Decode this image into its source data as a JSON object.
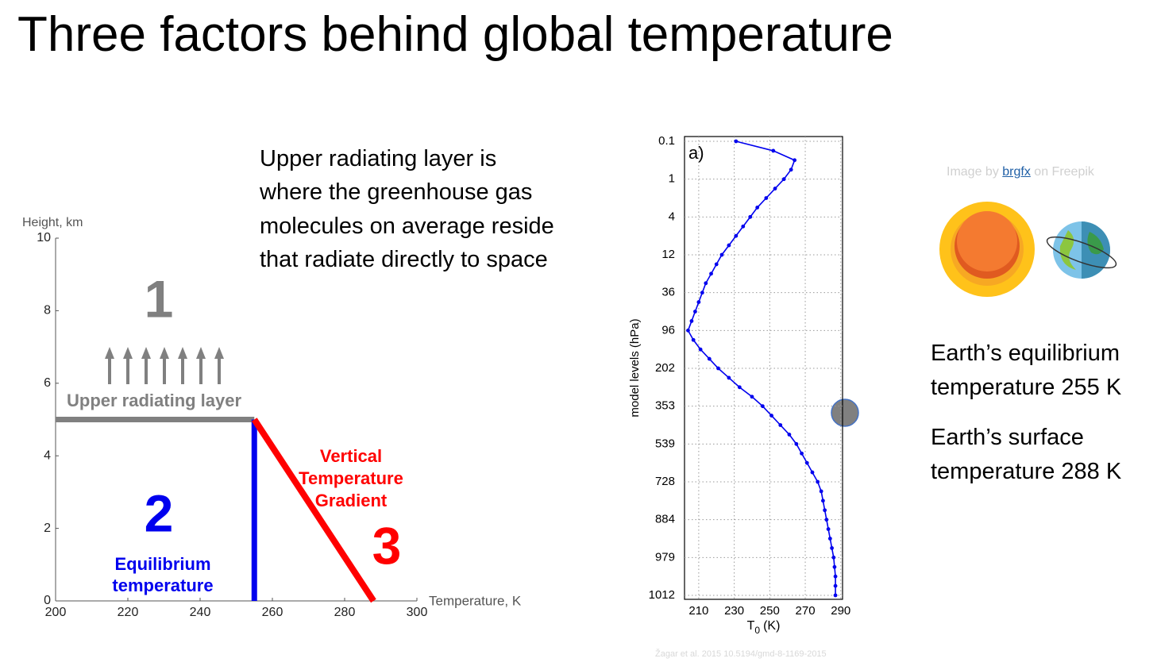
{
  "title": "Three factors behind global temperature",
  "description": "Upper radiating layer is where the greenhouse gas molecules on average reside that radiate directly to space",
  "credit": {
    "prefix": "Image by",
    "link": "brgfx",
    "suffix": "on Freepik"
  },
  "facts": [
    "Earth’s equilibrium temperature 255 K",
    "Earth’s surface temperature 288 K"
  ],
  "citation": "Žagar et al. 2015 10.5194/gmd-8-1169-2015",
  "chart_data": [
    {
      "type": "line",
      "y_label": "Height, km",
      "x_label": "Temperature, K",
      "xlim": [
        200,
        300
      ],
      "xticks": [
        200,
        220,
        240,
        260,
        280,
        300
      ],
      "ylim": [
        0,
        10
      ],
      "yticks": [
        0,
        2,
        4,
        6,
        8,
        10
      ],
      "grid": false,
      "series": [
        {
          "name": "Upper radiating layer",
          "factor": "1",
          "color": "#808080",
          "x": [
            200,
            255
          ],
          "values": [
            5,
            5
          ]
        },
        {
          "name": "Equilibrium temperature",
          "factor": "2",
          "color": "#0000ee",
          "x": [
            255,
            255
          ],
          "values": [
            0,
            5
          ]
        },
        {
          "name": "Vertical Temperature Gradient",
          "factor": "3",
          "color": "#ff0000",
          "x": [
            255,
            288
          ],
          "values": [
            5,
            0
          ]
        }
      ]
    },
    {
      "type": "line",
      "category_axis": "y",
      "annotation": "a)",
      "y_label": "model levels (hPa)",
      "x_label": {
        "main": "T",
        "sub": "0",
        "rest": "(K)"
      },
      "xlim": [
        202,
        291
      ],
      "xticks": [
        210,
        230,
        250,
        270,
        290
      ],
      "grid": true,
      "color": "#0000ee",
      "categories": [
        0.1,
        null,
        null,
        null,
        1,
        null,
        null,
        null,
        4,
        null,
        null,
        null,
        12,
        null,
        null,
        null,
        36,
        null,
        null,
        null,
        96,
        null,
        null,
        null,
        202,
        null,
        null,
        null,
        353,
        null,
        null,
        null,
        539,
        null,
        null,
        null,
        728,
        null,
        null,
        null,
        884,
        null,
        null,
        null,
        979,
        null,
        null,
        null,
        1012
      ],
      "values": [
        231,
        252,
        264,
        262,
        258,
        253,
        248,
        243,
        239,
        235,
        231,
        227,
        223,
        220,
        217,
        214,
        212,
        210,
        208,
        206,
        204,
        207,
        211,
        216,
        221,
        227,
        233,
        240,
        246,
        251,
        256,
        261,
        265,
        268,
        271,
        274,
        277,
        279,
        280,
        281,
        282,
        283,
        284,
        285,
        286,
        286.5,
        287,
        287,
        287
      ]
    }
  ]
}
